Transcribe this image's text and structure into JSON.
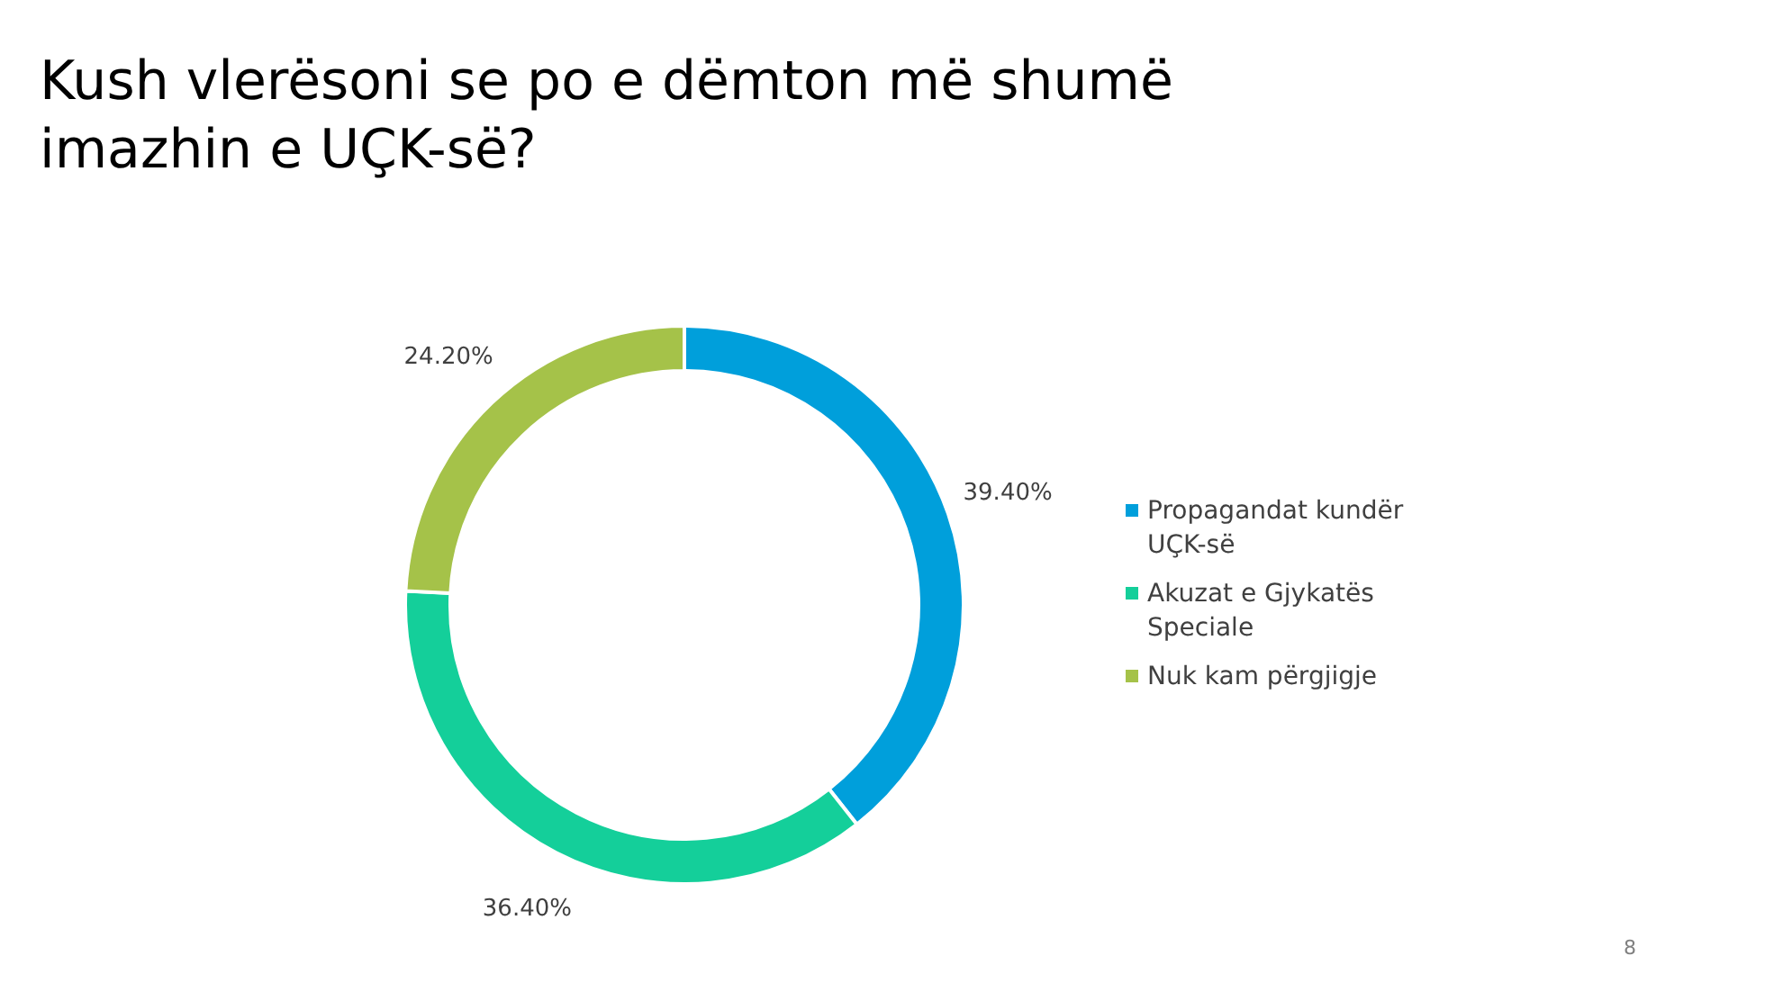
{
  "chart_data": {
    "type": "donut",
    "title": "Kush vlerësoni se po e dëmton më shumë imazhin e UÇK-së?",
    "categories": [
      "Propagandat kundër UÇK-së",
      "Akuzat e Gjykatës Speciale",
      "Nuk kam përgjigje"
    ],
    "values": [
      39.4,
      36.4,
      24.2
    ],
    "colors": [
      "#009fdb",
      "#14cf9a",
      "#a5c249"
    ],
    "value_labels": [
      "39.40%",
      "36.40%",
      "24.20%"
    ],
    "legend": "right",
    "annotations": [
      "8"
    ]
  }
}
